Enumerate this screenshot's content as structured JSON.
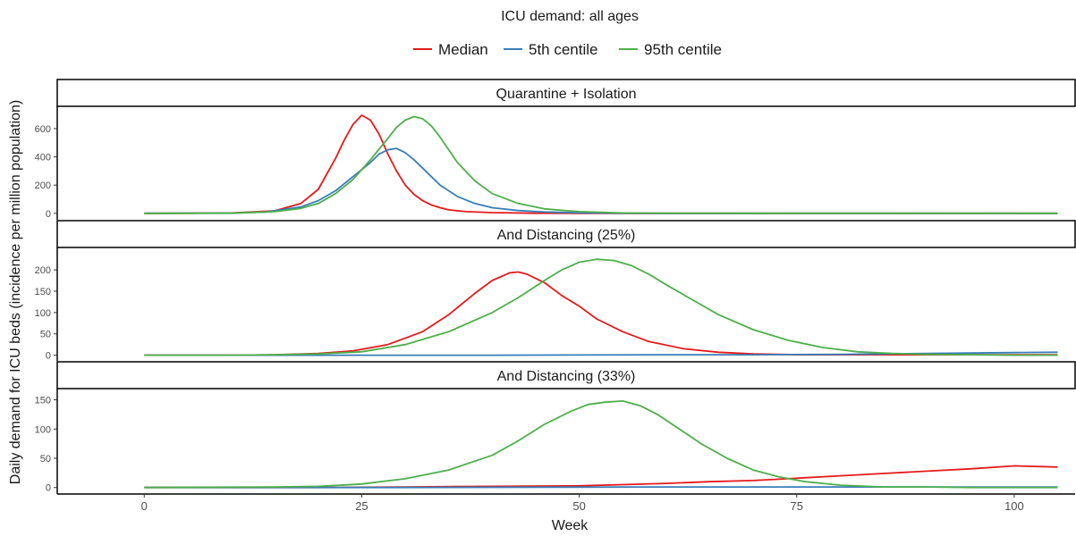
{
  "chart_data": {
    "type": "line",
    "title": "ICU demand: all ages",
    "xlabel": "Week",
    "ylabel": "Daily demand for ICU beds (incidence per million population)",
    "xlim": [
      -10,
      107
    ],
    "x_ticks": [
      0,
      25,
      50,
      75,
      100
    ],
    "grid": false,
    "legend_position": "top",
    "legend": [
      {
        "name": "Median",
        "color": "#e41a1c"
      },
      {
        "name": "5th centile",
        "color": "#377eb8"
      },
      {
        "name": "95th centile",
        "color": "#4daf4a"
      }
    ],
    "panels": [
      {
        "label": "Quarantine + Isolation",
        "ylim": [
          -20,
          720
        ],
        "y_ticks": [
          0,
          200,
          400,
          600
        ],
        "series": [
          {
            "name": "Median",
            "color": "#e41a1c",
            "x": [
              0,
              5,
              10,
              15,
              18,
              20,
              22,
              23,
              24,
              25,
              26,
              27,
              28,
              29,
              30,
              31,
              32,
              33,
              34,
              35,
              37,
              40,
              45,
              50,
              55,
              60,
              105
            ],
            "y": [
              0,
              1,
              3,
              18,
              70,
              170,
              390,
              520,
              630,
              695,
              660,
              560,
              420,
              300,
              200,
              135,
              90,
              60,
              40,
              25,
              12,
              5,
              1,
              0,
              0,
              0,
              0
            ]
          },
          {
            "name": "5th centile",
            "color": "#377eb8",
            "x": [
              0,
              10,
              14,
              18,
              20,
              22,
              24,
              26,
              27,
              28,
              29,
              30,
              31,
              32,
              33,
              34,
              36,
              38,
              40,
              43,
              46,
              50,
              55,
              60,
              105
            ],
            "y": [
              0,
              2,
              10,
              45,
              90,
              160,
              260,
              360,
              420,
              450,
              460,
              430,
              380,
              320,
              260,
              200,
              120,
              70,
              40,
              20,
              10,
              4,
              1,
              0,
              0
            ]
          },
          {
            "name": "95th centile",
            "color": "#4daf4a",
            "x": [
              0,
              10,
              15,
              18,
              20,
              22,
              24,
              26,
              28,
              29,
              30,
              31,
              32,
              33,
              34,
              35,
              36,
              38,
              40,
              43,
              46,
              50,
              55,
              60,
              105
            ],
            "y": [
              0,
              1,
              12,
              35,
              70,
              140,
              240,
              380,
              530,
              610,
              660,
              685,
              670,
              620,
              540,
              450,
              360,
              230,
              140,
              70,
              32,
              12,
              3,
              1,
              0
            ]
          }
        ]
      },
      {
        "label": "And Distancing (25%)",
        "ylim": [
          -5,
          240
        ],
        "y_ticks": [
          0,
          50,
          100,
          150,
          200
        ],
        "series": [
          {
            "name": "Median",
            "color": "#e41a1c",
            "x": [
              0,
              10,
              15,
              20,
              24,
              28,
              32,
              35,
              38,
              40,
              42,
              43,
              44,
              46,
              48,
              50,
              52,
              55,
              58,
              62,
              66,
              70,
              75,
              80,
              85,
              90,
              95,
              105
            ],
            "y": [
              0,
              0,
              1,
              4,
              10,
              25,
              55,
              95,
              145,
              175,
              193,
              195,
              190,
              170,
              140,
              115,
              85,
              55,
              32,
              15,
              7,
              3,
              1,
              1,
              1,
              1,
              1,
              1
            ]
          },
          {
            "name": "5th centile",
            "color": "#377eb8",
            "x": [
              0,
              20,
              40,
              60,
              70,
              80,
              85,
              90,
              95,
              100,
              105
            ],
            "y": [
              0,
              0,
              0,
              1,
              1,
              2,
              3,
              4,
              5,
              6,
              7
            ]
          },
          {
            "name": "95th centile",
            "color": "#4daf4a",
            "x": [
              0,
              10,
              15,
              20,
              25,
              30,
              35,
              40,
              43,
              46,
              48,
              50,
              52,
              54,
              56,
              58,
              60,
              63,
              66,
              70,
              74,
              78,
              82,
              86,
              90,
              95,
              100,
              105
            ],
            "y": [
              0,
              0,
              1,
              3,
              8,
              25,
              55,
              100,
              135,
              175,
              200,
              218,
              225,
              222,
              210,
              190,
              165,
              130,
              95,
              60,
              35,
              18,
              8,
              4,
              2,
              1,
              0,
              0
            ]
          }
        ]
      },
      {
        "label": "And Distancing (33%)",
        "ylim": [
          -5,
          160
        ],
        "y_ticks": [
          0,
          50,
          100,
          150
        ],
        "series": [
          {
            "name": "Median",
            "color": "#e41a1c",
            "x": [
              0,
              20,
              30,
              40,
              50,
              55,
              60,
              65,
              70,
              75,
              80,
              85,
              90,
              95,
              100,
              105
            ],
            "y": [
              0,
              0,
              1,
              2,
              3,
              5,
              7,
              10,
              12,
              16,
              20,
              24,
              28,
              32,
              37,
              35
            ]
          },
          {
            "name": "5th centile",
            "color": "#377eb8",
            "x": [
              0,
              30,
              60,
              90,
              105
            ],
            "y": [
              0,
              0,
              1,
              1,
              1
            ]
          },
          {
            "name": "95th centile",
            "color": "#4daf4a",
            "x": [
              0,
              15,
              20,
              25,
              30,
              35,
              40,
              43,
              46,
              49,
              51,
              53,
              55,
              57,
              59,
              61,
              64,
              67,
              70,
              73,
              76,
              80,
              85,
              90,
              95,
              105
            ],
            "y": [
              0,
              1,
              2,
              6,
              15,
              30,
              55,
              80,
              108,
              130,
              142,
              146,
              148,
              140,
              125,
              105,
              75,
              50,
              30,
              18,
              10,
              4,
              1,
              1,
              0,
              0
            ]
          }
        ]
      }
    ]
  }
}
